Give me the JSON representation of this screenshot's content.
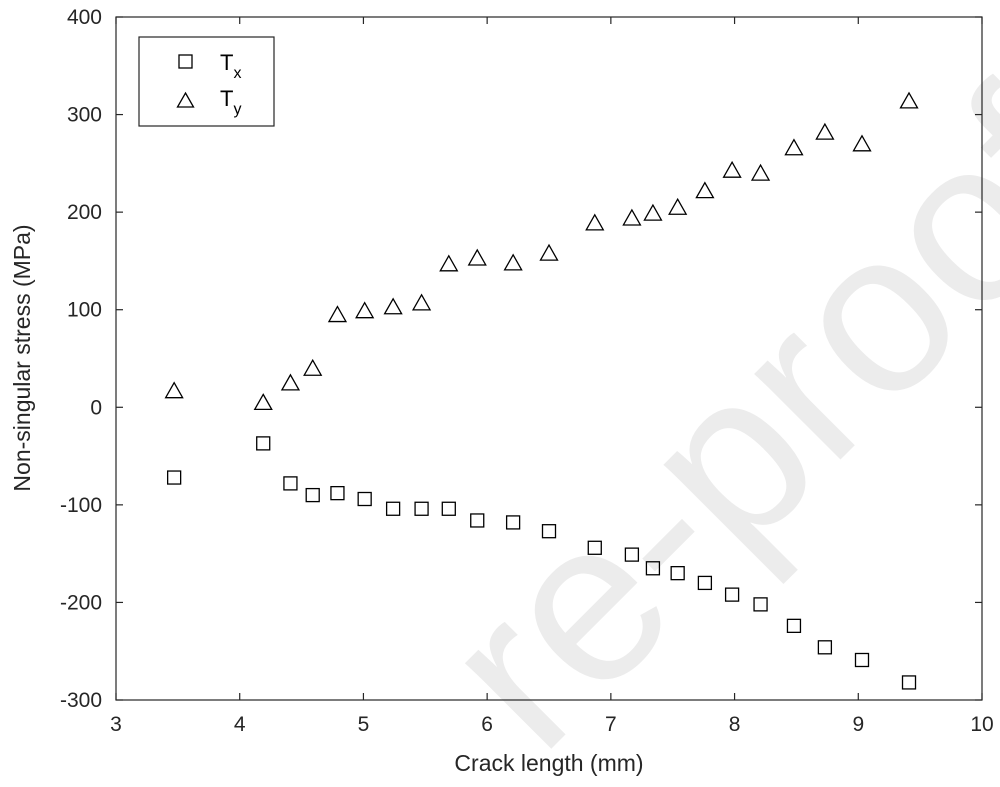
{
  "chart_data": {
    "type": "scatter",
    "title": "",
    "xlabel": "Crack length (mm)",
    "ylabel": "Non-singular stress (MPa)",
    "xlim": [
      3,
      10
    ],
    "ylim": [
      -300,
      400
    ],
    "xticks": [
      "3",
      "4",
      "5",
      "6",
      "7",
      "8",
      "9",
      "10"
    ],
    "yticks": [
      "-300",
      "-200",
      "-100",
      "0",
      "100",
      "200",
      "300",
      "400"
    ],
    "grid": false,
    "legend_position": "top-left",
    "series": [
      {
        "name": "T_x",
        "legend_main": "T",
        "legend_sub": "x",
        "marker": "square",
        "color": "#000000",
        "x": [
          3.47,
          4.19,
          4.41,
          4.59,
          4.79,
          5.01,
          5.24,
          5.47,
          5.69,
          5.92,
          6.21,
          6.5,
          6.87,
          7.17,
          7.34,
          7.54,
          7.76,
          7.98,
          8.21,
          8.48,
          8.73,
          9.03,
          9.41
        ],
        "y": [
          -72,
          -37,
          -78,
          -90,
          -88,
          -94,
          -104,
          -104,
          -104,
          -116,
          -118,
          -127,
          -144,
          -151,
          -165,
          -170,
          -180,
          -192,
          -202,
          -224,
          -246,
          -259,
          -282
        ]
      },
      {
        "name": "T_y",
        "legend_main": "T",
        "legend_sub": "y",
        "marker": "triangle",
        "color": "#000000",
        "x": [
          3.47,
          4.19,
          4.41,
          4.59,
          4.79,
          5.01,
          5.24,
          5.47,
          5.69,
          5.92,
          6.21,
          6.5,
          6.87,
          7.17,
          7.34,
          7.54,
          7.76,
          7.98,
          8.21,
          8.48,
          8.73,
          9.03,
          9.41
        ],
        "y": [
          16,
          4,
          24,
          39,
          94,
          98,
          102,
          106,
          146,
          152,
          147,
          157,
          188,
          193,
          198,
          204,
          221,
          242,
          239,
          265,
          281,
          269,
          313
        ]
      }
    ]
  },
  "watermark": {
    "text": "Journal Pre-proof",
    "visible_text": "re-proof",
    "color": "#ececec"
  }
}
